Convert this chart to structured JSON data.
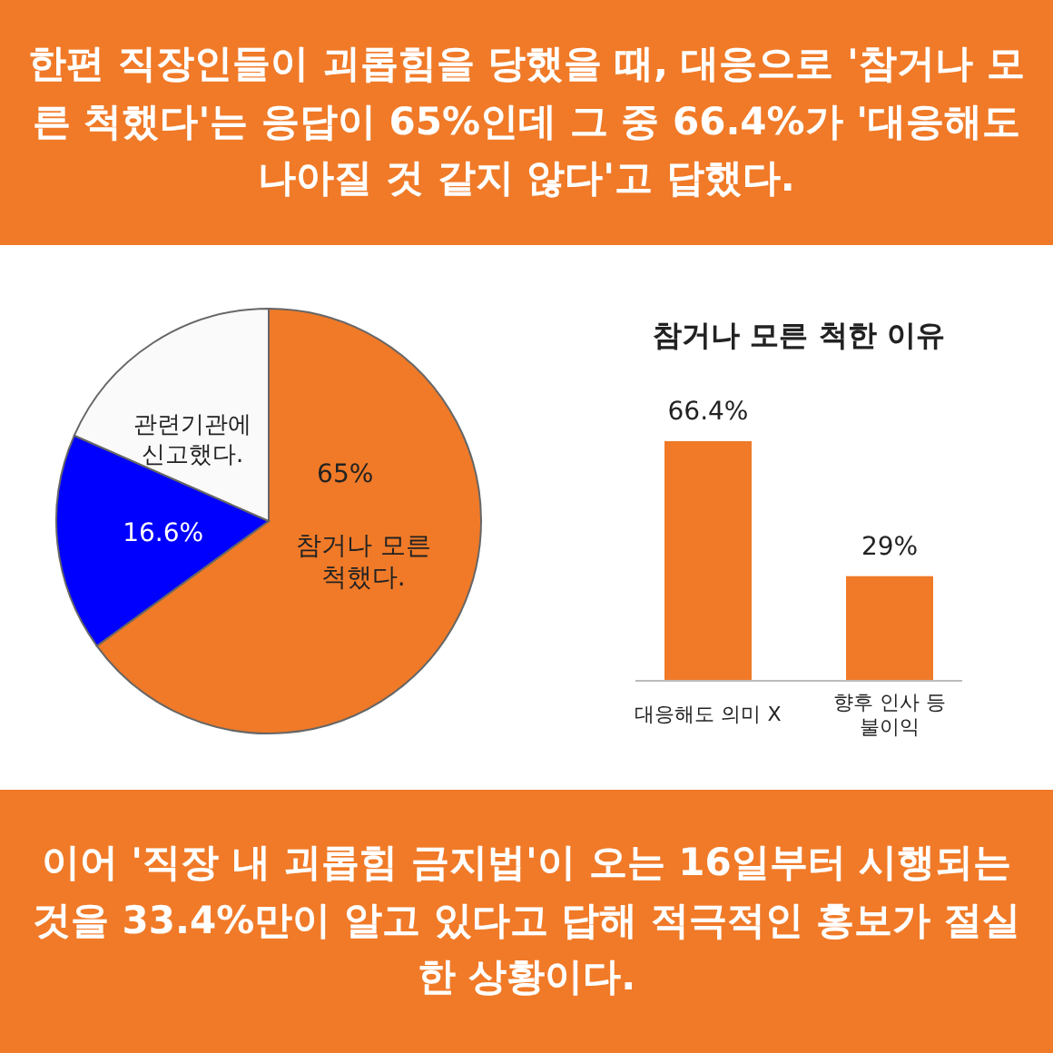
{
  "chart_data": [
    {
      "type": "pie",
      "title": "한편 직장인들이 괴롭힘을 당했을 때, 대응으로 '참거나 모른 척했다'는 응답이 65%인데 그 중 66.4%가 '대응해도 나아질 것 같지 않다'고 답했다.",
      "categories": [
        "참거나 모른 척했다.",
        null,
        "관련기관에 신고했다."
      ],
      "values": [
        65,
        16.6,
        18.4
      ],
      "value_labels": [
        "65%",
        "16.6%",
        null
      ],
      "colors": [
        "#f07a28",
        "#0000ff",
        "#fafafa"
      ]
    },
    {
      "type": "bar",
      "title": "참거나 모른 척한 이유",
      "categories": [
        "대응해도 의미 X",
        "향후 인사 등 불이익"
      ],
      "values": [
        66.4,
        29
      ],
      "value_labels": [
        "66.4%",
        "29%"
      ],
      "color": "#f07a28",
      "annotations": [
        "이어 '직장 내 괴롭힘 금지법'이 오는 16일부터 시행되는 것을 33.4%만이 알고 있다고 답해 적극적인 홍보가 절실한 상황이다."
      ]
    }
  ]
}
